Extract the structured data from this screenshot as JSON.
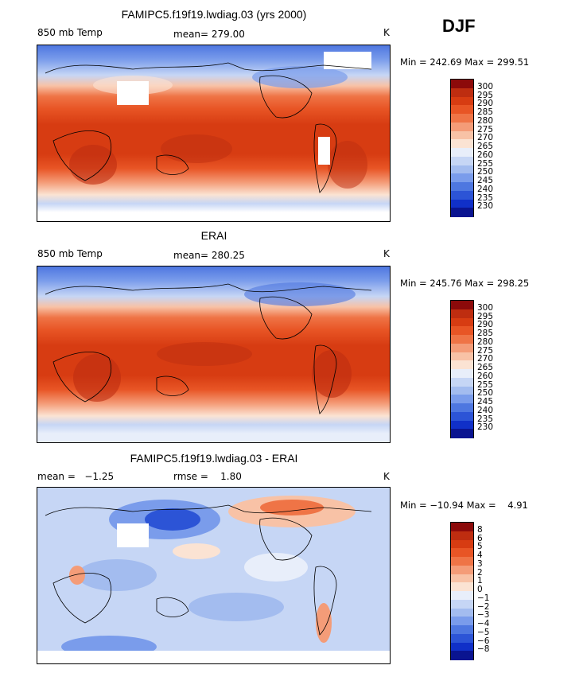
{
  "season": "DJF",
  "panels": [
    {
      "title": "FAMIPC5.f19f19.lwdiag.03 (yrs 2000)",
      "left_label": "850 mb Temp",
      "center_label": "mean= 279.00",
      "unit": "K",
      "minmax": "Min = 242.69 Max = 299.51"
    },
    {
      "title": "ERAI",
      "left_label": "850 mb Temp",
      "center_label": "mean= 280.25",
      "unit": "K",
      "minmax": "Min = 245.76 Max = 298.25"
    },
    {
      "title": "FAMIPC5.f19f19.lwdiag.03 - ERAI",
      "left_label": "mean =   −1.25",
      "center_label": "rmse =    1.80",
      "unit": "K",
      "minmax": "Min = −10.94 Max =    4.91"
    }
  ],
  "colorbars": {
    "temperature": {
      "labels": [
        "300",
        "295",
        "290",
        "285",
        "280",
        "275",
        "270",
        "265",
        "260",
        "255",
        "250",
        "245",
        "240",
        "235",
        "230"
      ],
      "colors": [
        "#8c0a0a",
        "#be2d10",
        "#d73c12",
        "#e85525",
        "#ef7446",
        "#f49c78",
        "#f8c2a6",
        "#fbe3d3",
        "#e8eefa",
        "#c6d6f5",
        "#a3bcef",
        "#7a9ceb",
        "#4e77e0",
        "#2c54d6",
        "#1030c8",
        "#0a1490"
      ]
    },
    "difference": {
      "labels": [
        "8",
        "6",
        "5",
        "4",
        "3",
        "2",
        "1",
        "0",
        "−1",
        "−2",
        "−3",
        "−4",
        "−5",
        "−6",
        "−8"
      ],
      "colors": [
        "#8c0a0a",
        "#be2d10",
        "#d73c12",
        "#e85525",
        "#ef7446",
        "#f49c78",
        "#f8c2a6",
        "#fbe3d3",
        "#e8eefa",
        "#c6d6f5",
        "#a3bcef",
        "#7a9ceb",
        "#4e77e0",
        "#2c54d6",
        "#1030c8",
        "#0a1490"
      ]
    }
  }
}
